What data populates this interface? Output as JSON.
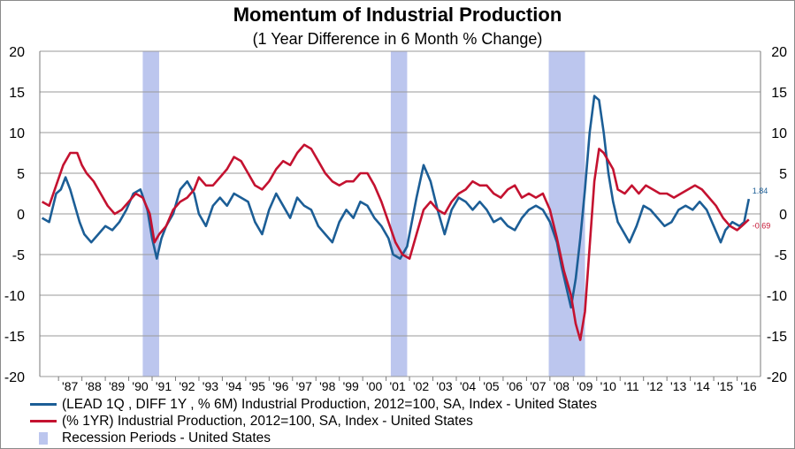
{
  "chart_data": {
    "type": "line",
    "title": "Momentum of Industrial Production",
    "subtitle": "(1 Year Difference in 6 Month % Change)",
    "ylim": [
      -20,
      20
    ],
    "xlim": [
      1986.2,
      2017.0
    ],
    "yticks": [
      "20",
      "15",
      "10",
      "5",
      "0",
      "-5",
      "-10",
      "-15",
      "-20"
    ],
    "ytick_values": [
      20,
      15,
      10,
      5,
      0,
      -5,
      -10,
      -15,
      -20
    ],
    "xticks": [
      "'87",
      "'88",
      "'89",
      "'90",
      "'91",
      "'92",
      "'93",
      "'94",
      "'95",
      "'96",
      "'97",
      "'98",
      "'99",
      "'00",
      "'01",
      "'02",
      "'03",
      "'04",
      "'05",
      "'06",
      "'07",
      "'08",
      "'09",
      "'10",
      "'11",
      "'12",
      "'13",
      "'14",
      "'15",
      "'16"
    ],
    "xtick_years": [
      1987,
      1988,
      1989,
      1990,
      1991,
      1992,
      1993,
      1994,
      1995,
      1996,
      1997,
      1998,
      1999,
      2000,
      2001,
      2002,
      2003,
      2004,
      2005,
      2006,
      2007,
      2008,
      2009,
      2010,
      2011,
      2012,
      2013,
      2014,
      2015,
      2016
    ],
    "grid": true,
    "legend_position": "bottom-left",
    "recessions": [
      {
        "start": 1990.6,
        "end": 1991.3
      },
      {
        "start": 2001.2,
        "end": 2001.9
      },
      {
        "start": 2007.95,
        "end": 2009.5
      }
    ],
    "series": [
      {
        "name": "(LEAD 1Q , DIFF 1Y , % 6M) Industrial Production, 2012=100, SA, Index - United States",
        "color": "#1c5e96",
        "end_label": "1.84",
        "x": [
          1986.3,
          1986.6,
          1986.9,
          1987.1,
          1987.3,
          1987.5,
          1987.7,
          1987.9,
          1988.1,
          1988.4,
          1988.7,
          1989.0,
          1989.3,
          1989.6,
          1989.9,
          1990.2,
          1990.5,
          1990.8,
          1991.0,
          1991.2,
          1991.4,
          1991.6,
          1991.9,
          1992.2,
          1992.5,
          1992.8,
          1993.0,
          1993.3,
          1993.6,
          1993.9,
          1994.2,
          1994.5,
          1994.8,
          1995.1,
          1995.4,
          1995.7,
          1996.0,
          1996.3,
          1996.6,
          1996.9,
          1997.2,
          1997.5,
          1997.8,
          1998.1,
          1998.4,
          1998.7,
          1999.0,
          1999.3,
          1999.6,
          1999.9,
          2000.2,
          2000.5,
          2000.8,
          2001.1,
          2001.3,
          2001.6,
          2001.9,
          2002.1,
          2002.3,
          2002.6,
          2002.9,
          2003.2,
          2003.5,
          2003.8,
          2004.1,
          2004.4,
          2004.7,
          2005.0,
          2005.3,
          2005.6,
          2005.9,
          2006.2,
          2006.5,
          2006.8,
          2007.1,
          2007.4,
          2007.7,
          2008.0,
          2008.3,
          2008.5,
          2008.7,
          2008.9,
          2009.1,
          2009.3,
          2009.5,
          2009.7,
          2009.9,
          2010.1,
          2010.3,
          2010.5,
          2010.7,
          2010.9,
          2011.1,
          2011.4,
          2011.7,
          2012.0,
          2012.3,
          2012.6,
          2012.9,
          2013.2,
          2013.5,
          2013.8,
          2014.1,
          2014.4,
          2014.7,
          2015.0,
          2015.3,
          2015.5,
          2015.8,
          2016.1,
          2016.3,
          2016.5
        ],
        "y": [
          -0.5,
          -1.0,
          2.5,
          3.0,
          4.5,
          3.0,
          1.0,
          -1.0,
          -2.5,
          -3.5,
          -2.5,
          -1.5,
          -2.0,
          -1.0,
          0.5,
          2.5,
          3.0,
          0.5,
          -3.0,
          -5.5,
          -3.0,
          -1.5,
          0.0,
          3.0,
          4.0,
          2.5,
          0.0,
          -1.5,
          1.0,
          2.0,
          1.0,
          2.5,
          2.0,
          1.5,
          -1.0,
          -2.5,
          0.5,
          2.5,
          1.0,
          -0.5,
          2.0,
          1.0,
          0.5,
          -1.5,
          -2.5,
          -3.5,
          -1.0,
          0.5,
          -0.5,
          1.5,
          1.0,
          -0.5,
          -1.5,
          -3.0,
          -5.0,
          -5.5,
          -4.0,
          -1.0,
          2.0,
          6.0,
          4.0,
          0.5,
          -2.5,
          0.5,
          2.0,
          1.5,
          0.5,
          1.5,
          0.5,
          -1.0,
          -0.5,
          -1.5,
          -2.0,
          -0.5,
          0.5,
          1.0,
          0.5,
          -1.0,
          -3.5,
          -6.5,
          -9.0,
          -11.5,
          -8.0,
          -3.0,
          3.0,
          10.0,
          14.5,
          14.0,
          10.0,
          5.0,
          1.5,
          -1.0,
          -2.0,
          -3.5,
          -1.5,
          1.0,
          0.5,
          -0.5,
          -1.5,
          -1.0,
          0.5,
          1.0,
          0.5,
          1.5,
          0.5,
          -1.5,
          -3.5,
          -2.0,
          -1.0,
          -1.5,
          -1.0,
          1.84
        ]
      },
      {
        "name": "(% 1YR) Industrial Production, 2012=100, SA, Index - United States",
        "color": "#c41230",
        "end_label": "-0.69",
        "x": [
          1986.3,
          1986.6,
          1986.9,
          1987.2,
          1987.5,
          1987.8,
          1988.0,
          1988.2,
          1988.5,
          1988.8,
          1989.1,
          1989.4,
          1989.7,
          1990.0,
          1990.3,
          1990.6,
          1990.9,
          1991.1,
          1991.3,
          1991.6,
          1991.9,
          1992.2,
          1992.5,
          1992.8,
          1993.0,
          1993.3,
          1993.6,
          1993.9,
          1994.2,
          1994.5,
          1994.8,
          1995.1,
          1995.4,
          1995.7,
          1996.0,
          1996.3,
          1996.6,
          1996.9,
          1997.2,
          1997.5,
          1997.8,
          1998.1,
          1998.4,
          1998.7,
          1999.0,
          1999.3,
          1999.6,
          1999.9,
          2000.2,
          2000.5,
          2000.8,
          2001.1,
          2001.4,
          2001.7,
          2002.0,
          2002.3,
          2002.6,
          2002.9,
          2003.2,
          2003.5,
          2003.8,
          2004.1,
          2004.4,
          2004.7,
          2005.0,
          2005.3,
          2005.6,
          2005.9,
          2006.2,
          2006.5,
          2006.8,
          2007.1,
          2007.4,
          2007.7,
          2008.0,
          2008.3,
          2008.6,
          2008.9,
          2009.1,
          2009.3,
          2009.5,
          2009.7,
          2009.9,
          2010.1,
          2010.3,
          2010.5,
          2010.7,
          2010.9,
          2011.2,
          2011.5,
          2011.8,
          2012.1,
          2012.4,
          2012.7,
          2013.0,
          2013.3,
          2013.6,
          2013.9,
          2014.2,
          2014.5,
          2014.8,
          2015.1,
          2015.4,
          2015.7,
          2016.0,
          2016.2,
          2016.5
        ],
        "y": [
          1.5,
          1.0,
          3.5,
          6.0,
          7.5,
          7.5,
          6.0,
          5.0,
          4.0,
          2.5,
          1.0,
          0.0,
          0.5,
          1.5,
          2.5,
          2.0,
          0.0,
          -3.5,
          -2.5,
          -1.5,
          0.5,
          1.5,
          2.0,
          3.0,
          4.5,
          3.5,
          3.5,
          4.5,
          5.5,
          7.0,
          6.5,
          5.0,
          3.5,
          3.0,
          4.0,
          5.5,
          6.5,
          6.0,
          7.5,
          8.5,
          8.0,
          6.5,
          5.0,
          4.0,
          3.5,
          4.0,
          4.0,
          5.0,
          5.0,
          3.5,
          1.5,
          -1.0,
          -3.5,
          -5.0,
          -5.5,
          -2.5,
          0.5,
          1.5,
          0.5,
          0.0,
          1.5,
          2.5,
          3.0,
          4.0,
          3.5,
          3.5,
          2.5,
          2.0,
          3.0,
          3.5,
          2.0,
          2.5,
          2.0,
          2.5,
          0.5,
          -3.0,
          -7.0,
          -10.0,
          -13.5,
          -15.5,
          -12.0,
          -4.0,
          4.0,
          8.0,
          7.5,
          6.5,
          5.5,
          3.0,
          2.5,
          3.5,
          2.5,
          3.5,
          3.0,
          2.5,
          2.5,
          2.0,
          2.5,
          3.0,
          3.5,
          3.0,
          2.0,
          1.0,
          -0.5,
          -1.5,
          -2.0,
          -1.5,
          -0.69
        ]
      }
    ]
  },
  "legend": {
    "items": [
      {
        "label": "(LEAD 1Q , DIFF 1Y , % 6M) Industrial Production, 2012=100, SA, Index - United States",
        "color": "#1c5e96",
        "kind": "line"
      },
      {
        "label": "(% 1YR) Industrial Production, 2012=100, SA, Index - United States",
        "color": "#c41230",
        "kind": "line"
      },
      {
        "label": "Recession Periods - United States",
        "color": "#bcc6ee",
        "kind": "box"
      }
    ]
  }
}
